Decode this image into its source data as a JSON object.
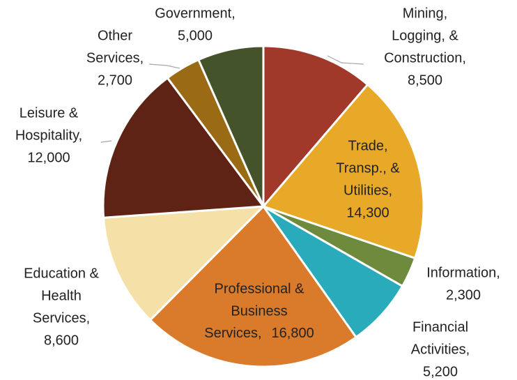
{
  "chart_data": {
    "type": "pie",
    "categories": [
      [
        "Mining,",
        "Logging, &",
        "Construction,"
      ],
      [
        "Trade,",
        "Transp., &",
        "Utilities,"
      ],
      [
        "Information,"
      ],
      [
        "Financial",
        "Activities,"
      ],
      [
        "Professional &",
        "Business",
        "Services,"
      ],
      [
        "Education &",
        "Health",
        "Services,"
      ],
      [
        "Leisure &",
        "Hospitality,"
      ],
      [
        "Other",
        "Services,"
      ],
      [
        "Government,"
      ]
    ],
    "values": [
      8500,
      14300,
      2300,
      5200,
      16800,
      8600,
      12000,
      2700,
      5000
    ],
    "value_labels": [
      "8,500",
      "14,300",
      "2,300",
      "5,200",
      "16,800",
      "8,600",
      "12,000",
      "2,700",
      "5,000"
    ],
    "colors": [
      "#a0392a",
      "#e8a828",
      "#6e8b3d",
      "#2aabbc",
      "#d97b2a",
      "#f5e0a8",
      "#5e2314",
      "#9a6b14",
      "#44532a"
    ]
  }
}
